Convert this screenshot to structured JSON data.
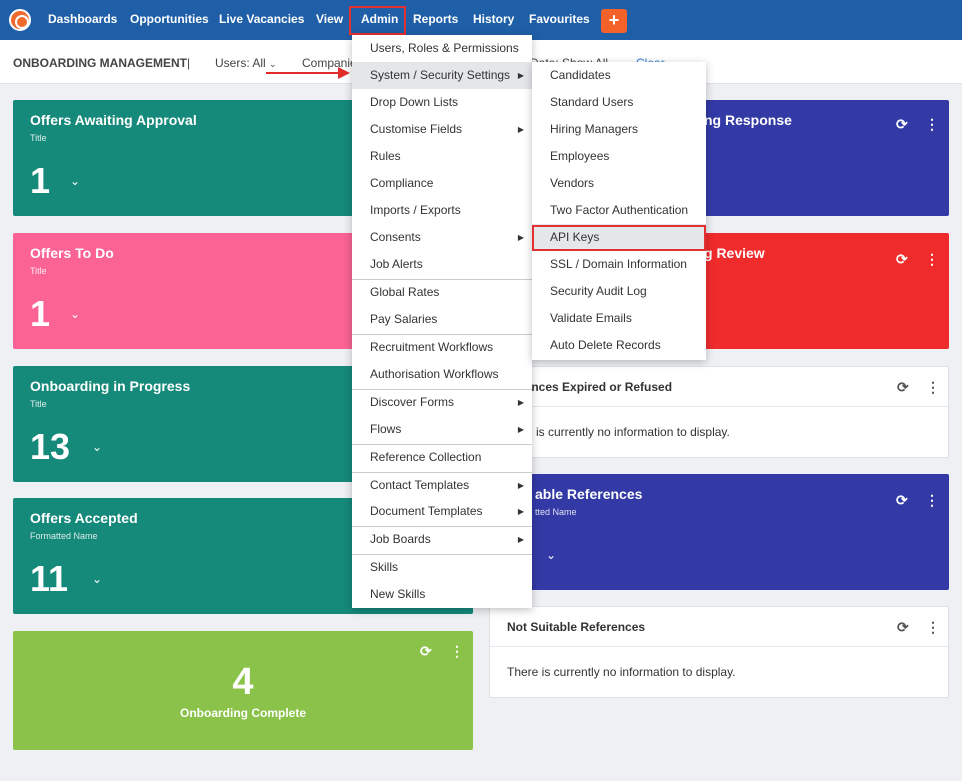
{
  "nav": {
    "items": [
      "Dashboards",
      "Opportunities",
      "Live Vacancies",
      "View",
      "Admin",
      "Reports",
      "History",
      "Favourites"
    ],
    "plus": "+"
  },
  "subheader": {
    "title": "ONBOARDING MANAGEMENT",
    "separator": "|",
    "users_filter": "Users: All",
    "companies_filter": "Companies",
    "date_filter": "Date: Show All",
    "clear_link": "Clear"
  },
  "cards": {
    "offers_awaiting_approval": {
      "title": "Offers Awaiting Approval",
      "subtitle": "Title",
      "value": "1"
    },
    "awaiting_response": {
      "title": "ng Response"
    },
    "offers_to_do": {
      "title": "Offers To Do",
      "subtitle": "Title",
      "value": "1"
    },
    "awaiting_review": {
      "title": "g Review"
    },
    "onboarding_in_progress": {
      "title": "Onboarding in Progress",
      "subtitle": "Title",
      "value": "13"
    },
    "references_expired": {
      "title": "rences Expired or Refused",
      "message": "e is currently no information to display."
    },
    "offers_accepted": {
      "title": "Offers Accepted",
      "subtitle": "Formatted Name",
      "value": "11"
    },
    "suitable_references": {
      "title": "able References",
      "subtitle": "tted Name"
    },
    "onboarding_complete": {
      "title": "Onboarding Complete",
      "value": "4"
    },
    "not_suitable_references": {
      "title": "Not Suitable References",
      "message": "There is currently no information to display."
    }
  },
  "admin_menu": {
    "items": [
      "Users, Roles & Permissions",
      "System / Security Settings",
      "Drop Down Lists",
      "Customise Fields",
      "Rules",
      "Compliance",
      "Imports / Exports",
      "Consents",
      "Job Alerts",
      "Global Rates",
      "Pay Salaries",
      "Recruitment Workflows",
      "Authorisation Workflows",
      "Discover Forms",
      "Flows",
      "Reference Collection",
      "Contact Templates",
      "Document Templates",
      "Job Boards",
      "Skills",
      "New Skills"
    ]
  },
  "security_submenu": {
    "items": [
      "Candidates",
      "Standard Users",
      "Hiring Managers",
      "Employees",
      "Vendors",
      "Two Factor Authentication",
      "API Keys",
      "SSL / Domain Information",
      "Security Audit Log",
      "Validate Emails",
      "Auto Delete Records"
    ]
  },
  "icons": {
    "refresh": "refresh-icon",
    "more": "more-vertical-icon",
    "chevron": "chevron-down-icon",
    "submenu_caret": "caret-right-icon"
  },
  "colors": {
    "nav_bg": "#1f5fa8",
    "teal": "#15897a",
    "pink": "#fa6394",
    "green": "#8bc34a",
    "indigo": "#333aa6",
    "red": "#ef2b2b",
    "orange": "#f4622a",
    "annotation_red": "#e33030"
  }
}
